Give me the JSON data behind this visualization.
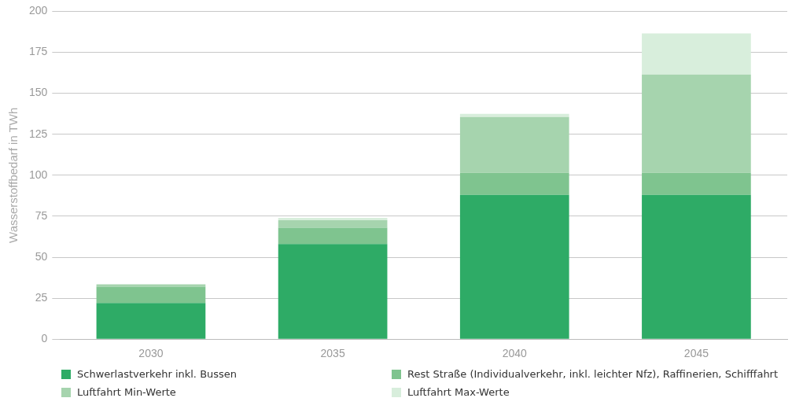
{
  "chart_data": {
    "type": "bar",
    "stacked": true,
    "ylabel": "Wasserstoffbedarf in TWh",
    "categories": [
      "2030",
      "2035",
      "2040",
      "2045"
    ],
    "series": [
      {
        "name": "Schwerlastverkehr inkl. Bussen",
        "color": "#2eab66",
        "values": [
          22,
          58,
          88,
          88
        ]
      },
      {
        "name": "Rest Straße (Individualverkehr, inkl. leichter Nfz), Raffinerien, Schifffahrt",
        "color": "#7fc48f",
        "values": [
          10,
          10,
          13.5,
          13.5
        ]
      },
      {
        "name": "Luftfahrt Min-Werte",
        "color": "#a6d4ae",
        "values": [
          1.5,
          4.5,
          34,
          60
        ]
      },
      {
        "name": "Luftfahrt Max-Werte",
        "color": "#d8eedc",
        "values": [
          null,
          1.5,
          2,
          25
        ]
      }
    ],
    "ylim": [
      0,
      200
    ],
    "yticks": [
      0,
      25,
      50,
      75,
      100,
      125,
      150,
      175,
      200
    ],
    "grid": "y",
    "legend": "bottom"
  }
}
